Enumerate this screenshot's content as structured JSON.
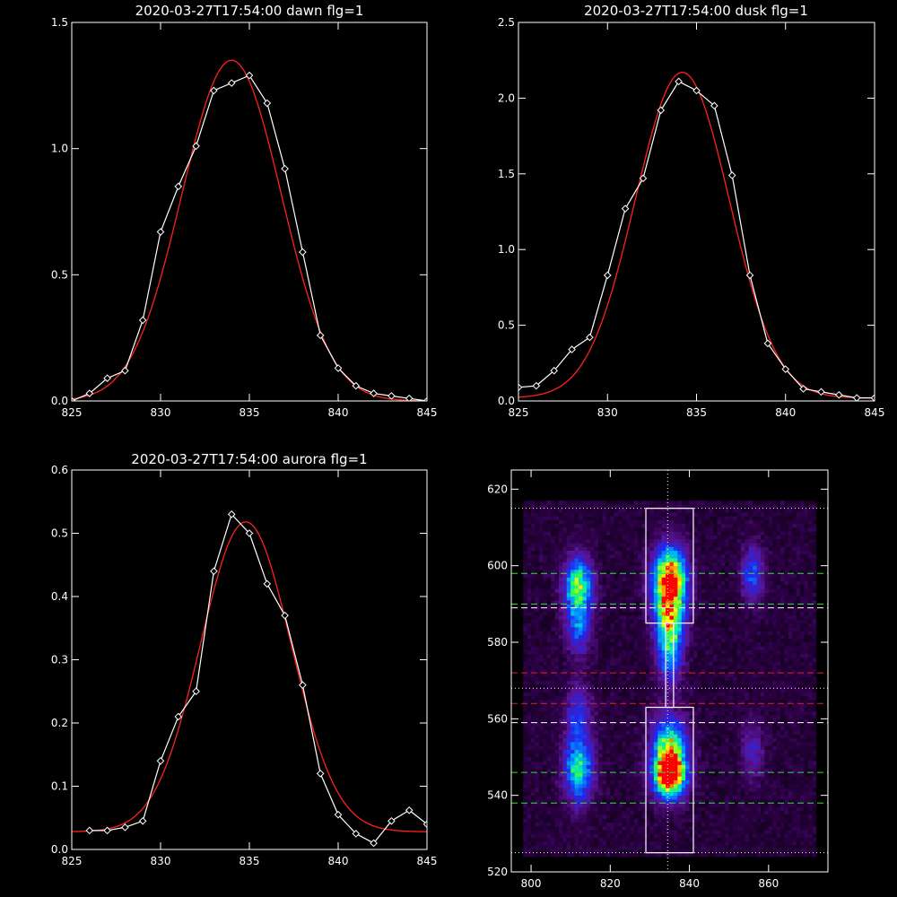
{
  "chart_data": [
    {
      "id": "dawn",
      "type": "line",
      "title": "2020-03-27T17:54:00 dawn flg=1",
      "xlim": [
        825,
        845
      ],
      "ylim": [
        0,
        1.5
      ],
      "xticks": [
        825,
        830,
        835,
        840,
        845
      ],
      "yticks": [
        0.0,
        0.5,
        1.0,
        1.5
      ],
      "ytick_labels": [
        "0.0",
        "0.5",
        "1.0",
        "1.5"
      ],
      "grid": false,
      "series": [
        {
          "kind": "measured",
          "marker": "diamond",
          "color": "#ffffff",
          "x": [
            825,
            826,
            827,
            828,
            829,
            830,
            831,
            832,
            833,
            834,
            835,
            836,
            837,
            838,
            839,
            840,
            841,
            842,
            843,
            844,
            845
          ],
          "y": [
            0.0,
            0.03,
            0.09,
            0.12,
            0.32,
            0.67,
            0.85,
            1.01,
            1.23,
            1.26,
            1.29,
            1.18,
            0.92,
            0.59,
            0.26,
            0.13,
            0.06,
            0.03,
            0.02,
            0.01,
            0.0
          ]
        },
        {
          "kind": "fit",
          "color": "#ff2020",
          "gaussian": {
            "amplitude": 1.35,
            "center": 834.0,
            "sigma": 2.8,
            "offset": 0.0
          }
        }
      ]
    },
    {
      "id": "dusk",
      "type": "line",
      "title": "2020-03-27T17:54:00 dusk flg=1",
      "xlim": [
        825,
        845
      ],
      "ylim": [
        0,
        2.5
      ],
      "xticks": [
        825,
        830,
        835,
        840,
        845
      ],
      "yticks": [
        0.0,
        0.5,
        1.0,
        1.5,
        2.0,
        2.5
      ],
      "ytick_labels": [
        "0.0",
        "0.5",
        "1.0",
        "1.5",
        "2.0",
        "2.5"
      ],
      "grid": false,
      "series": [
        {
          "kind": "measured",
          "marker": "diamond",
          "color": "#ffffff",
          "x": [
            825,
            826,
            827,
            828,
            829,
            830,
            831,
            832,
            833,
            834,
            835,
            836,
            837,
            838,
            839,
            840,
            841,
            842,
            843,
            844,
            845
          ],
          "y": [
            0.09,
            0.1,
            0.2,
            0.34,
            0.42,
            0.83,
            1.27,
            1.47,
            1.92,
            2.11,
            2.05,
            1.95,
            1.49,
            0.83,
            0.38,
            0.21,
            0.08,
            0.06,
            0.04,
            0.02,
            0.02
          ]
        },
        {
          "kind": "fit",
          "color": "#ff2020",
          "gaussian": {
            "amplitude": 2.15,
            "center": 834.2,
            "sigma": 2.65,
            "offset": 0.02
          }
        }
      ]
    },
    {
      "id": "aurora",
      "type": "line",
      "title": "2020-03-27T17:54:00 aurora flg=1",
      "xlim": [
        825,
        845
      ],
      "ylim": [
        0,
        0.6
      ],
      "xticks": [
        825,
        830,
        835,
        840,
        845
      ],
      "yticks": [
        0.0,
        0.1,
        0.2,
        0.3,
        0.4,
        0.5,
        0.6
      ],
      "ytick_labels": [
        "0.0",
        "0.1",
        "0.2",
        "0.3",
        "0.4",
        "0.5",
        "0.6"
      ],
      "grid": false,
      "series": [
        {
          "kind": "measured",
          "marker": "diamond",
          "color": "#ffffff",
          "x": [
            826,
            827,
            828,
            829,
            830,
            831,
            832,
            833,
            834,
            835,
            836,
            837,
            838,
            839,
            840,
            841,
            842,
            843,
            844,
            845
          ],
          "y": [
            0.03,
            0.03,
            0.035,
            0.045,
            0.14,
            0.21,
            0.25,
            0.44,
            0.53,
            0.5,
            0.42,
            0.37,
            0.26,
            0.12,
            0.055,
            0.025,
            0.01,
            0.045,
            0.062,
            0.04
          ]
        },
        {
          "kind": "fit",
          "color": "#ff2020",
          "gaussian": {
            "amplitude": 0.49,
            "center": 834.8,
            "sigma": 2.55,
            "offset": 0.028
          }
        }
      ]
    },
    {
      "id": "image",
      "type": "heatmap",
      "title": "",
      "xlim": [
        795,
        875
      ],
      "ylim": [
        520,
        625
      ],
      "xticks": [
        800,
        820,
        840,
        860
      ],
      "yticks": [
        520,
        540,
        560,
        580,
        600,
        620
      ],
      "grid": false,
      "blobs": [
        {
          "cx": 835,
          "cy": 596,
          "sx": 3.0,
          "sy": 6.0,
          "amp": 1.0
        },
        {
          "cx": 835,
          "cy": 585,
          "sx": 2.5,
          "sy": 5.0,
          "amp": 0.55
        },
        {
          "cx": 835,
          "cy": 576,
          "sx": 2.2,
          "sy": 5.0,
          "amp": 0.4
        },
        {
          "cx": 835,
          "cy": 552,
          "sx": 3.0,
          "sy": 6.0,
          "amp": 0.7
        },
        {
          "cx": 835,
          "cy": 545,
          "sx": 2.8,
          "sy": 4.0,
          "amp": 0.85
        },
        {
          "cx": 812,
          "cy": 595,
          "sx": 2.5,
          "sy": 5.0,
          "amp": 0.65
        },
        {
          "cx": 812,
          "cy": 584,
          "sx": 2.2,
          "sy": 5.0,
          "amp": 0.35
        },
        {
          "cx": 812,
          "cy": 547,
          "sx": 2.5,
          "sy": 6.0,
          "amp": 0.6
        },
        {
          "cx": 812,
          "cy": 562,
          "sx": 2.2,
          "sy": 5.0,
          "amp": 0.3
        },
        {
          "cx": 856,
          "cy": 598,
          "sx": 2.0,
          "sy": 5.0,
          "amp": 0.35
        },
        {
          "cx": 856,
          "cy": 552,
          "sx": 2.0,
          "sy": 6.0,
          "amp": 0.2
        }
      ],
      "boxes": [
        {
          "x0": 829,
          "x1": 841,
          "y0": 585,
          "y1": 615,
          "color": "#ffffff"
        },
        {
          "x0": 829,
          "x1": 841,
          "y0": 525,
          "y1": 563,
          "color": "#ffffff"
        },
        {
          "x0": 834,
          "x1": 836,
          "y0": 563,
          "y1": 585,
          "color": "#ffffff"
        }
      ],
      "hlines": [
        {
          "y": 615,
          "color": "#ffffff",
          "style": "dotted"
        },
        {
          "y": 525,
          "color": "#ffffff",
          "style": "dotted"
        },
        {
          "y": 598,
          "color": "#30e040",
          "style": "dashed"
        },
        {
          "y": 590,
          "color": "#30e040",
          "style": "dashed"
        },
        {
          "y": 589,
          "color": "#ffffff",
          "style": "dashed"
        },
        {
          "y": 572,
          "color": "#e02020",
          "style": "dashed"
        },
        {
          "y": 568,
          "color": "#ffffff",
          "style": "dotted"
        },
        {
          "y": 564,
          "color": "#e02020",
          "style": "dashed"
        },
        {
          "y": 559,
          "color": "#ffffff",
          "style": "dashed"
        },
        {
          "y": 546,
          "color": "#30e040",
          "style": "dashed"
        },
        {
          "y": 538,
          "color": "#30e040",
          "style": "dashed"
        }
      ],
      "vlines": [
        {
          "x": 834.5,
          "color": "#ffffff",
          "style": "dotted"
        }
      ]
    }
  ]
}
